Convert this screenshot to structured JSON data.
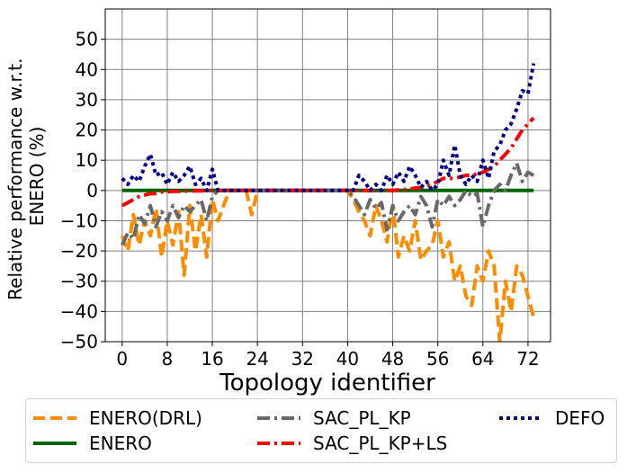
{
  "chart_data": {
    "type": "line",
    "title": "",
    "xlabel": "Topology identifier",
    "ylabel": [
      "Relative performance w.r.t.",
      "ENERO (%)"
    ],
    "xlim": [
      -3,
      76
    ],
    "ylim": [
      -50,
      60
    ],
    "xticks": [
      0,
      8,
      16,
      24,
      32,
      40,
      48,
      56,
      64,
      72
    ],
    "yticks": [
      -50,
      -40,
      -30,
      -20,
      -10,
      0,
      10,
      20,
      30,
      40,
      50
    ],
    "grid": true,
    "legend_position": "below",
    "x": [
      0,
      1,
      2,
      3,
      4,
      5,
      6,
      7,
      8,
      9,
      10,
      11,
      12,
      13,
      14,
      15,
      16,
      17,
      18,
      19,
      20,
      21,
      22,
      23,
      24,
      25,
      26,
      27,
      28,
      29,
      30,
      31,
      32,
      33,
      34,
      35,
      36,
      37,
      38,
      39,
      40,
      41,
      42,
      43,
      44,
      45,
      46,
      47,
      48,
      49,
      50,
      51,
      52,
      53,
      54,
      55,
      56,
      57,
      58,
      59,
      60,
      61,
      62,
      63,
      64,
      65,
      66,
      67,
      68,
      69,
      70,
      71,
      72,
      73
    ],
    "series": [
      {
        "name": "ENERO(DRL)",
        "color": "#ff8c00",
        "dash": "dashed",
        "values": [
          -15,
          -20,
          -8,
          -18,
          -10,
          -15,
          -6,
          -22,
          -10,
          -18,
          -7,
          -28,
          -5,
          -20,
          -8,
          -22,
          -3,
          -10,
          -5,
          0,
          0,
          0,
          0,
          -8,
          0,
          0,
          0,
          0,
          0,
          0,
          0,
          0,
          0,
          0,
          0,
          0,
          0,
          0,
          0,
          0,
          0,
          -3,
          -7,
          -10,
          -15,
          -5,
          -10,
          -17,
          -5,
          -22,
          -15,
          -20,
          -10,
          -23,
          -20,
          -18,
          -10,
          -22,
          -17,
          -30,
          -25,
          -35,
          -38,
          -25,
          -30,
          -20,
          -25,
          -50,
          -30,
          -40,
          -25,
          -28,
          -35,
          -42
        ]
      },
      {
        "name": "ENERO",
        "color": "#006400",
        "dash": "solid",
        "values": [
          0,
          0,
          0,
          0,
          0,
          0,
          0,
          0,
          0,
          0,
          0,
          0,
          0,
          0,
          0,
          0,
          0,
          0,
          0,
          0,
          0,
          0,
          0,
          0,
          0,
          0,
          0,
          0,
          0,
          0,
          0,
          0,
          0,
          0,
          0,
          0,
          0,
          0,
          0,
          0,
          0,
          0,
          0,
          0,
          0,
          0,
          0,
          0,
          0,
          0,
          0,
          0,
          0,
          0,
          0,
          0,
          0,
          0,
          0,
          0,
          0,
          0,
          0,
          0,
          0,
          0,
          0,
          0,
          0,
          0,
          0,
          0,
          0,
          0
        ]
      },
      {
        "name": "SAC_PL_KP",
        "color": "#696969",
        "dash": "dashdot",
        "values": [
          -18,
          -14,
          -16,
          -8,
          -11,
          -5,
          -12,
          -7,
          -10,
          -5,
          -9,
          -5,
          -7,
          -5,
          -3,
          -10,
          -2,
          0,
          0,
          0,
          0,
          0,
          0,
          0,
          0,
          0,
          0,
          0,
          0,
          0,
          0,
          0,
          0,
          0,
          0,
          0,
          0,
          0,
          0,
          0,
          0,
          -2,
          -5,
          -8,
          -3,
          -6,
          -4,
          -13,
          -5,
          -10,
          -7,
          -5,
          -8,
          -2,
          -5,
          -12,
          -3,
          -5,
          -2,
          -5,
          -3,
          0,
          -2,
          -1,
          -12,
          -5,
          0,
          2,
          0,
          5,
          9,
          3,
          6,
          5
        ]
      },
      {
        "name": "SAC_PL_KP+LS",
        "color": "#ff0000",
        "dash": "dashdot",
        "values": [
          -5,
          -4,
          -3,
          -2,
          -1.5,
          -1,
          -1,
          -0.5,
          -0.5,
          -0.3,
          -0.3,
          -0.2,
          -0.2,
          -0.1,
          -0.1,
          0,
          0,
          0,
          0,
          0,
          0,
          0,
          0,
          0,
          0,
          0,
          0,
          0,
          0,
          0,
          0,
          0,
          0,
          0,
          0,
          0,
          0,
          0,
          0,
          0,
          0,
          0,
          0,
          0,
          0,
          0,
          0,
          0,
          0,
          0.2,
          0.3,
          0.5,
          0.8,
          1,
          1.5,
          2,
          3,
          4,
          4,
          4,
          4.5,
          5,
          5,
          5.5,
          6,
          7,
          8,
          10,
          12,
          14,
          17,
          20,
          22,
          24
        ]
      },
      {
        "name": "DEFO",
        "color": "#00008b",
        "dash": "dotted",
        "values": [
          4,
          2,
          5,
          3,
          8,
          12,
          5,
          6,
          2,
          6,
          3,
          5,
          8,
          2,
          4,
          0,
          7,
          0,
          0,
          0,
          0,
          0,
          0,
          0,
          0,
          0,
          0,
          0,
          0,
          0,
          0,
          0,
          0,
          0,
          0,
          0,
          0,
          0,
          0,
          0,
          0,
          0,
          5,
          3,
          0,
          2,
          0,
          5,
          2,
          6,
          3,
          8,
          5,
          1,
          3,
          0,
          2,
          10,
          5,
          15,
          5,
          2,
          5,
          3,
          10,
          4,
          13,
          15,
          20,
          22,
          27,
          33,
          32,
          42
        ]
      }
    ]
  }
}
